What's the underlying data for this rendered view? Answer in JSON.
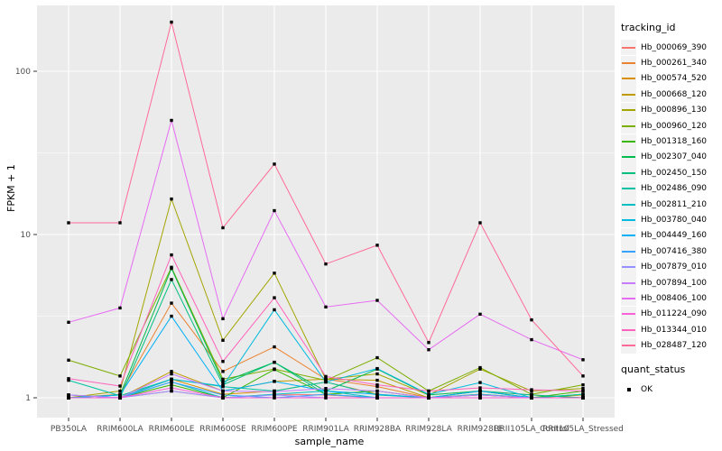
{
  "figure": {
    "xlabel": "sample_name",
    "ylabel": "FPKM + 1",
    "legend_tracking_title": "tracking_id",
    "legend_quant_title": "quant_status",
    "quant_ok_label": "OK",
    "colors": {
      "panel_bg": "#EBEBEB",
      "grid_major": "#FFFFFF",
      "grid_minor": "#FFFFFF",
      "tick_text": "#4D4D4D",
      "tick_mark": "#333333",
      "legend_key_bg": "#F2F2F2",
      "point": "#000000"
    }
  },
  "chart_data": {
    "type": "line",
    "title": "",
    "xlabel": "sample_name",
    "ylabel": "FPKM + 1",
    "y_scale": "log10",
    "ylim": [
      1,
      220
    ],
    "y_ticks": [
      1,
      10,
      100
    ],
    "y_minor_ticks": [
      3.162,
      31.62
    ],
    "grid": true,
    "legend_position": "right",
    "point_marker": {
      "shape": "square",
      "color": "#000000",
      "label": "OK"
    },
    "categories": [
      "PB350LA",
      "RRIM600LA",
      "RRIM600LE",
      "RRIM600SE",
      "RRIM600PE",
      "RRIM901LA",
      "RRIM928BA",
      "RRIM928LA",
      "RRIM928LE",
      "RRII105LA_Control",
      "RRII105LA_Stressed"
    ],
    "series": [
      {
        "name": "Hb_000069_390",
        "color": "#F8766D",
        "values": [
          1.04,
          1.0,
          1.1,
          1.0,
          1.05,
          1.04,
          1.0,
          1.0,
          1.04,
          1.0,
          1.0
        ]
      },
      {
        "name": "Hb_000261_340",
        "color": "#EA8331",
        "values": [
          1.0,
          1.05,
          3.8,
          1.45,
          2.05,
          1.3,
          1.17,
          1.0,
          1.1,
          1.04,
          1.0
        ]
      },
      {
        "name": "Hb_000574_520",
        "color": "#D89000",
        "values": [
          1.0,
          1.0,
          1.3,
          1.05,
          1.1,
          1.25,
          1.05,
          1.0,
          1.05,
          1.0,
          1.0
        ]
      },
      {
        "name": "Hb_000668_120",
        "color": "#C09B00",
        "values": [
          1.0,
          1.0,
          1.45,
          1.1,
          1.26,
          1.3,
          1.28,
          1.0,
          1.1,
          1.0,
          1.04
        ]
      },
      {
        "name": "Hb_000896_130",
        "color": "#A3A500",
        "values": [
          1.0,
          1.1,
          16.5,
          2.25,
          5.8,
          1.3,
          1.4,
          1.04,
          1.5,
          1.1,
          1.14
        ]
      },
      {
        "name": "Hb_000960_120",
        "color": "#7CAE00",
        "values": [
          1.7,
          1.36,
          6.3,
          1.3,
          1.5,
          1.28,
          1.76,
          1.1,
          1.53,
          1.05,
          1.2
        ]
      },
      {
        "name": "Hb_001318_160",
        "color": "#39B600",
        "values": [
          1.0,
          1.0,
          1.2,
          1.0,
          1.49,
          1.05,
          1.1,
          1.0,
          1.04,
          1.0,
          1.1
        ]
      },
      {
        "name": "Hb_002307_040",
        "color": "#00BB4E",
        "values": [
          1.0,
          1.04,
          6.2,
          1.25,
          1.65,
          1.1,
          1.5,
          1.04,
          1.1,
          1.0,
          1.05
        ]
      },
      {
        "name": "Hb_002450_150",
        "color": "#00BF7D",
        "values": [
          1.0,
          1.0,
          5.3,
          1.2,
          1.65,
          1.05,
          1.0,
          1.0,
          1.1,
          1.04,
          1.0
        ]
      },
      {
        "name": "Hb_002486_090",
        "color": "#00C1A3",
        "values": [
          1.28,
          1.03,
          1.3,
          1.17,
          1.1,
          1.25,
          1.04,
          1.0,
          1.0,
          1.0,
          1.05
        ]
      },
      {
        "name": "Hb_002811_210",
        "color": "#00BFC4",
        "values": [
          1.0,
          1.0,
          1.25,
          1.0,
          1.05,
          1.1,
          1.0,
          1.0,
          1.05,
          1.0,
          1.0
        ]
      },
      {
        "name": "Hb_003780_040",
        "color": "#00BAE0",
        "values": [
          1.04,
          1.0,
          1.3,
          1.18,
          3.46,
          1.25,
          1.51,
          1.05,
          1.24,
          1.0,
          1.0
        ]
      },
      {
        "name": "Hb_004449_160",
        "color": "#00B0F6",
        "values": [
          1.0,
          1.04,
          3.16,
          1.1,
          1.26,
          1.1,
          1.05,
          1.0,
          1.1,
          1.0,
          1.0
        ]
      },
      {
        "name": "Hb_007416_380",
        "color": "#35A2FF",
        "values": [
          1.0,
          1.0,
          1.25,
          1.04,
          1.0,
          1.05,
          1.0,
          1.0,
          1.0,
          1.0,
          1.0
        ]
      },
      {
        "name": "Hb_007879_010",
        "color": "#9590FF",
        "values": [
          1.0,
          1.0,
          1.1,
          1.0,
          1.04,
          1.0,
          1.0,
          1.0,
          1.0,
          1.0,
          1.0
        ]
      },
      {
        "name": "Hb_007894_100",
        "color": "#C77CFF",
        "values": [
          1.04,
          1.0,
          1.4,
          1.1,
          1.09,
          1.14,
          1.1,
          1.0,
          1.04,
          1.0,
          1.0
        ]
      },
      {
        "name": "Hb_008406_100",
        "color": "#E76BF3",
        "values": [
          2.9,
          3.55,
          50.0,
          3.05,
          14.0,
          3.6,
          3.95,
          1.97,
          3.25,
          2.27,
          1.71
        ]
      },
      {
        "name": "Hb_011224_090",
        "color": "#FA62DB",
        "values": [
          1.0,
          1.0,
          1.15,
          1.0,
          1.0,
          1.0,
          1.0,
          1.0,
          1.0,
          1.0,
          1.0
        ]
      },
      {
        "name": "Hb_013344_010",
        "color": "#FF62BC",
        "values": [
          1.31,
          1.18,
          7.5,
          1.67,
          4.1,
          1.35,
          1.2,
          1.1,
          1.15,
          1.12,
          1.1
        ]
      },
      {
        "name": "Hb_028487_120",
        "color": "#FF6A98",
        "values": [
          11.8,
          11.8,
          200.0,
          11.0,
          27.0,
          6.6,
          8.6,
          2.18,
          11.8,
          3.0,
          1.36
        ]
      }
    ]
  }
}
